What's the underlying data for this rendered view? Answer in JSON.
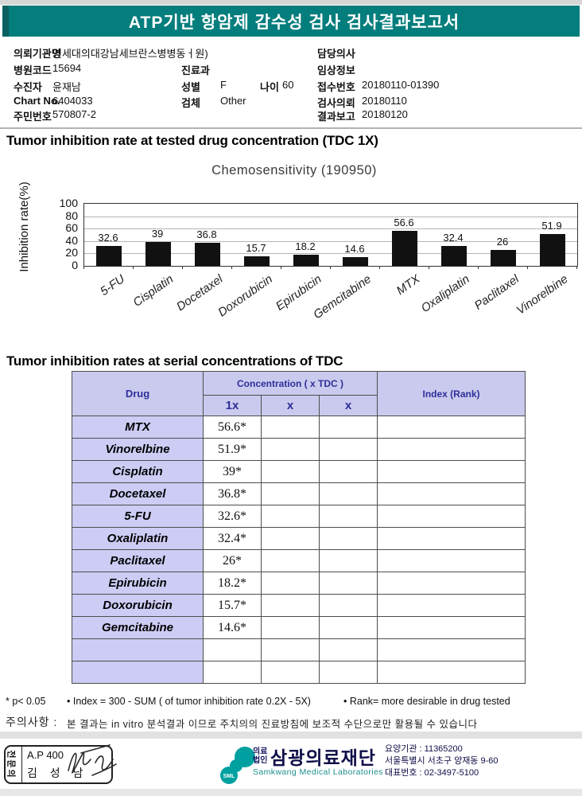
{
  "header": {
    "title": "ATP기반 항암제 감수성 검사 검사결과보고서"
  },
  "patient": {
    "org": {
      "label": "의뢰기관명",
      "value": "연세대의대강남세브란스병병동ㅓ원)"
    },
    "hospital_code": {
      "label": "병원코드",
      "value": "15694"
    },
    "examinee": {
      "label": "수진자",
      "value": "윤재남"
    },
    "chart_no": {
      "label": "Chart No.",
      "value": "6404033"
    },
    "resident_no": {
      "label": "주민번호",
      "value": "570807-2"
    },
    "department": {
      "label": "진료과",
      "value": ""
    },
    "sex": {
      "label": "성별",
      "value": "F"
    },
    "age": {
      "label": "나이",
      "value": "60"
    },
    "specimen": {
      "label": "검체",
      "value": "Other"
    },
    "doctor": {
      "label": "담당의사",
      "value": ""
    },
    "clinical_info": {
      "label": "임상정보",
      "value": ""
    },
    "receipt_no": {
      "label": "접수번호",
      "value": "20180110-01390"
    },
    "request_date": {
      "label": "검사의뢰",
      "value": "20180110"
    },
    "report_date": {
      "label": "결과보고",
      "value": "20180120"
    }
  },
  "section1": {
    "title": "Tumor inhibition rate at tested drug concentration (TDC 1X)"
  },
  "chart_data": {
    "type": "bar",
    "title": "Chemosensitivity (190950)",
    "ylabel": "Inhibition rate(%)",
    "xlabel": "",
    "categories": [
      "5-FU",
      "Cisplatin",
      "Docetaxel",
      "Doxorubicin",
      "Epirubicin",
      "Gemcitabine",
      "MTX",
      "Oxaliplatin",
      "Paclitaxel",
      "Vinorelbine"
    ],
    "values": [
      32.6,
      39,
      36.8,
      15.7,
      18.2,
      14.6,
      56.6,
      32.4,
      26,
      51.9
    ],
    "value_labels": [
      "32.6",
      "39",
      "36.8",
      "15.7",
      "18.2",
      "14.6",
      "56.6",
      "32.4",
      "26",
      "51.9"
    ],
    "yticks": [
      0,
      20,
      40,
      60,
      80,
      100
    ],
    "ylim": [
      0,
      100
    ],
    "grid": true,
    "legend": "none",
    "bar_color": "#111111"
  },
  "section2": {
    "title": "Tumor inhibition rates at serial concentrations of TDC"
  },
  "table": {
    "headers": {
      "drug": "Drug",
      "concentration": "Concentration ( x TDC )",
      "c1": "1x",
      "c2": "x",
      "c3": "x",
      "index": "Index (Rank)"
    },
    "rows": [
      {
        "drug": "MTX",
        "c1": "56.6*",
        "c2": "",
        "c3": "",
        "index": ""
      },
      {
        "drug": "Vinorelbine",
        "c1": "51.9*",
        "c2": "",
        "c3": "",
        "index": ""
      },
      {
        "drug": "Cisplatin",
        "c1": "39*",
        "c2": "",
        "c3": "",
        "index": ""
      },
      {
        "drug": "Docetaxel",
        "c1": "36.8*",
        "c2": "",
        "c3": "",
        "index": ""
      },
      {
        "drug": "5-FU",
        "c1": "32.6*",
        "c2": "",
        "c3": "",
        "index": ""
      },
      {
        "drug": "Oxaliplatin",
        "c1": "32.4*",
        "c2": "",
        "c3": "",
        "index": ""
      },
      {
        "drug": "Paclitaxel",
        "c1": "26*",
        "c2": "",
        "c3": "",
        "index": ""
      },
      {
        "drug": "Epirubicin",
        "c1": "18.2*",
        "c2": "",
        "c3": "",
        "index": ""
      },
      {
        "drug": "Doxorubicin",
        "c1": "15.7*",
        "c2": "",
        "c3": "",
        "index": ""
      },
      {
        "drug": "Gemcitabine",
        "c1": "14.6*",
        "c2": "",
        "c3": "",
        "index": ""
      },
      {
        "drug": "",
        "c1": "",
        "c2": "",
        "c3": "",
        "index": ""
      },
      {
        "drug": "",
        "c1": "",
        "c2": "",
        "c3": "",
        "index": ""
      }
    ]
  },
  "notes": {
    "p_value": "* p< 0.05",
    "index_formula": "• Index = 300 - SUM ( of tumor inhibition rate 0.2X  -  5X)",
    "rank": "• Rank= more desirable in drug tested",
    "caution_label": "주의사항 :",
    "caution_text": "본 결과는 in vitro 분석결과 이므로 주치의의 진료방침에 보조적 수단으로만 활용될 수 있습니다"
  },
  "footer": {
    "stamp": {
      "role": "전문의",
      "code": "A.P 400",
      "name": "김 성 남"
    },
    "logo_text": "SML",
    "org_type_line1": "의료",
    "org_type_line2": "법인",
    "org_name": "삼광의료재단",
    "org_name_en": "Samkwang Medical Laboratories",
    "info": {
      "care_org": "요양기관 : 11365200",
      "address": "서울특별시 서초구 양재동 9-60",
      "phone": "대표번호 : 02-3497-5100"
    }
  },
  "colors": {
    "banner_teal": "#047d7d",
    "logo_teal": "#00a0a0",
    "table_header_bg": "#cacaee",
    "table_drug_bg": "#ccccf5",
    "table_header_text": "#2e2e9a",
    "footer_navy": "#0e0e48",
    "bar_color": "#111111"
  }
}
